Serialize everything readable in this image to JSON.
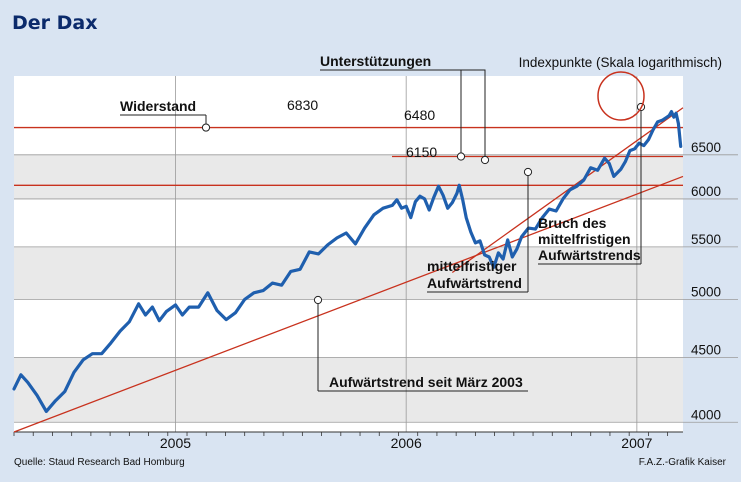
{
  "title": "Der Dax",
  "source": "Quelle: Staud Research Bad Homburg",
  "credit": "F.A.Z.-Grafik Kaiser",
  "colors": {
    "background": "#d9e4f2",
    "plot_band_light": "#ffffff",
    "plot_band_shaded": "#e9e9e9",
    "series": "#1f5fae",
    "annotation": "#c8321e",
    "title": "#0b2a6b"
  },
  "chart_data": {
    "type": "line",
    "title": "Der Dax",
    "ylabel": "Indexpunkte (Skala logarithmisch)",
    "yscale": "log",
    "xlim": [
      2004.3,
      2007.2
    ],
    "ylim": [
      3930,
      7500
    ],
    "x_ticks": [
      2005,
      2006,
      2007
    ],
    "y_ticks": [
      4000,
      4500,
      5000,
      5500,
      6000,
      6500
    ],
    "series": [
      {
        "name": "DAX",
        "points": [
          [
            2004.3,
            4250
          ],
          [
            2004.33,
            4360
          ],
          [
            2004.36,
            4300
          ],
          [
            2004.4,
            4200
          ],
          [
            2004.44,
            4080
          ],
          [
            2004.48,
            4160
          ],
          [
            2004.52,
            4230
          ],
          [
            2004.56,
            4380
          ],
          [
            2004.6,
            4480
          ],
          [
            2004.64,
            4530
          ],
          [
            2004.68,
            4530
          ],
          [
            2004.72,
            4620
          ],
          [
            2004.76,
            4720
          ],
          [
            2004.8,
            4800
          ],
          [
            2004.84,
            4960
          ],
          [
            2004.87,
            4860
          ],
          [
            2004.9,
            4930
          ],
          [
            2004.93,
            4810
          ],
          [
            2004.96,
            4890
          ],
          [
            2005.0,
            4950
          ],
          [
            2005.03,
            4860
          ],
          [
            2005.06,
            4930
          ],
          [
            2005.1,
            4930
          ],
          [
            2005.14,
            5060
          ],
          [
            2005.18,
            4900
          ],
          [
            2005.22,
            4820
          ],
          [
            2005.26,
            4880
          ],
          [
            2005.3,
            5000
          ],
          [
            2005.34,
            5060
          ],
          [
            2005.38,
            5080
          ],
          [
            2005.42,
            5150
          ],
          [
            2005.46,
            5130
          ],
          [
            2005.5,
            5260
          ],
          [
            2005.54,
            5280
          ],
          [
            2005.58,
            5450
          ],
          [
            2005.62,
            5430
          ],
          [
            2005.66,
            5520
          ],
          [
            2005.7,
            5590
          ],
          [
            2005.74,
            5640
          ],
          [
            2005.78,
            5530
          ],
          [
            2005.82,
            5690
          ],
          [
            2005.86,
            5830
          ],
          [
            2005.9,
            5900
          ],
          [
            2005.94,
            5930
          ],
          [
            2005.96,
            5990
          ],
          [
            2005.98,
            5900
          ],
          [
            2006.0,
            5920
          ],
          [
            2006.02,
            5800
          ],
          [
            2006.04,
            5970
          ],
          [
            2006.06,
            6030
          ],
          [
            2006.08,
            6000
          ],
          [
            2006.1,
            5880
          ],
          [
            2006.12,
            6020
          ],
          [
            2006.14,
            6140
          ],
          [
            2006.16,
            6040
          ],
          [
            2006.18,
            5900
          ],
          [
            2006.2,
            5960
          ],
          [
            2006.22,
            6060
          ],
          [
            2006.23,
            6150
          ],
          [
            2006.245,
            5990
          ],
          [
            2006.26,
            5800
          ],
          [
            2006.28,
            5650
          ],
          [
            2006.3,
            5540
          ],
          [
            2006.32,
            5560
          ],
          [
            2006.34,
            5420
          ],
          [
            2006.36,
            5400
          ],
          [
            2006.38,
            5300
          ],
          [
            2006.4,
            5440
          ],
          [
            2006.42,
            5380
          ],
          [
            2006.44,
            5570
          ],
          [
            2006.46,
            5400
          ],
          [
            2006.48,
            5480
          ],
          [
            2006.5,
            5600
          ],
          [
            2006.53,
            5690
          ],
          [
            2006.56,
            5680
          ],
          [
            2006.59,
            5800
          ],
          [
            2006.62,
            5890
          ],
          [
            2006.65,
            5870
          ],
          [
            2006.68,
            6000
          ],
          [
            2006.71,
            6100
          ],
          [
            2006.74,
            6140
          ],
          [
            2006.77,
            6210
          ],
          [
            2006.8,
            6350
          ],
          [
            2006.83,
            6320
          ],
          [
            2006.86,
            6460
          ],
          [
            2006.88,
            6400
          ],
          [
            2006.9,
            6250
          ],
          [
            2006.93,
            6330
          ],
          [
            2006.95,
            6420
          ],
          [
            2006.97,
            6550
          ],
          [
            2006.99,
            6570
          ],
          [
            2007.01,
            6640
          ],
          [
            2007.03,
            6610
          ],
          [
            2007.05,
            6680
          ],
          [
            2007.07,
            6800
          ],
          [
            2007.09,
            6900
          ],
          [
            2007.11,
            6920
          ],
          [
            2007.13,
            6960
          ],
          [
            2007.14,
            6980
          ],
          [
            2007.15,
            7030
          ],
          [
            2007.16,
            6960
          ],
          [
            2007.17,
            7010
          ],
          [
            2007.18,
            6880
          ],
          [
            2007.19,
            6600
          ]
        ]
      }
    ],
    "resistance_lines": [
      {
        "label": "Widerstand",
        "value": 6830
      },
      {
        "value": 6480
      },
      {
        "value": 6150
      }
    ],
    "support_label": "Unterstützungen",
    "trendlines": [
      {
        "label": "Aufwärtstrend seit März 2003",
        "from": [
          2004.3,
          3930
        ],
        "to": [
          2007.2,
          6250
        ]
      },
      {
        "label": "mittelfristiger Aufwärtstrend",
        "from": [
          2006.2,
          5250
        ],
        "to": [
          2007.2,
          7080
        ]
      }
    ],
    "annotations": [
      {
        "text": "Bruch des mittelfristigen Aufwärtstrends",
        "lines": [
          "Bruch des",
          "mittelfristigen",
          "Aufwärtstrends"
        ]
      }
    ],
    "labels": {
      "mid_trend": [
        "mittelfristiger",
        "Aufwärtstrend"
      ],
      "long_trend": "Aufwärtstrend seit März 2003",
      "resistance": "Widerstand",
      "support": "Unterstützungen",
      "v6830": "6830",
      "v6480": "6480",
      "v6150": "6150"
    }
  }
}
